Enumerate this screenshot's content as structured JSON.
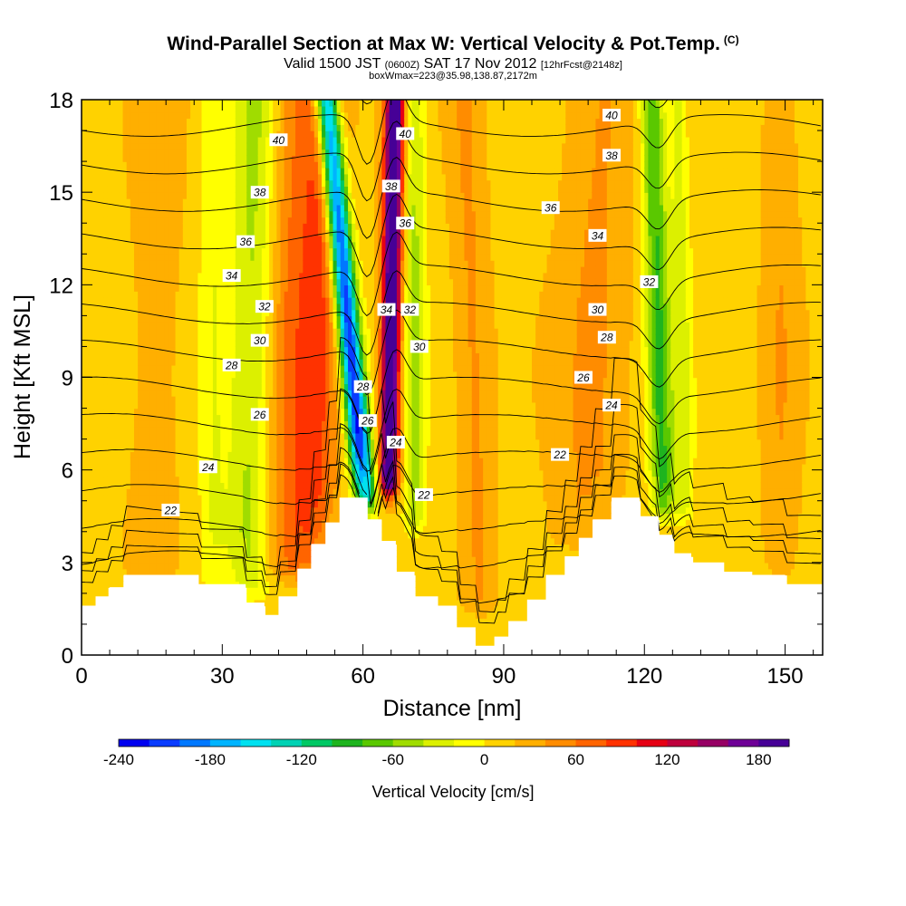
{
  "title": {
    "main": "Wind-Parallel Section at Max W: Vertical Velocity & Pot.Temp.",
    "copyright": "(C)",
    "valid_a": "Valid 1500 JST",
    "valid_utc": "(0600Z)",
    "valid_b": "SAT 17 Nov 2012",
    "fcst": "[12hrFcst@2148z]",
    "boxwmax": "boxWmax=223@35.98,138.87,2172m"
  },
  "chart_data": {
    "type": "heatmap",
    "xlabel": "Distance [nm]",
    "ylabel": "Height [Kft MSL]",
    "xlim": [
      0,
      158
    ],
    "ylim": [
      0,
      18
    ],
    "x_ticks": [
      0,
      30,
      60,
      90,
      120,
      150
    ],
    "y_ticks": [
      0,
      3,
      6,
      9,
      12,
      15,
      18
    ],
    "colorbar": {
      "label": "Vertical Velocity [cm/s]",
      "min": -240,
      "max": 200,
      "step": 20,
      "ticks": [
        -240,
        -180,
        -120,
        -60,
        0,
        60,
        120,
        180
      ],
      "colors": [
        "#0000f0",
        "#0a3cff",
        "#0078ff",
        "#00b4ff",
        "#00e1f0",
        "#00d2b4",
        "#00c864",
        "#1eb41e",
        "#5ac800",
        "#a0dc00",
        "#dcf000",
        "#ffff00",
        "#ffd200",
        "#ffaf00",
        "#ff8c00",
        "#ff6400",
        "#ff3200",
        "#e60014",
        "#be003c",
        "#960064",
        "#6e0096",
        "#460096"
      ]
    },
    "terrain_kft": [
      [
        0,
        1.6
      ],
      [
        3,
        1.6
      ],
      [
        3,
        1.9
      ],
      [
        6,
        1.9
      ],
      [
        6,
        2.2
      ],
      [
        9,
        2.2
      ],
      [
        9,
        2.6
      ],
      [
        25,
        2.6
      ],
      [
        25,
        2.3
      ],
      [
        35,
        2.3
      ],
      [
        35,
        1.7
      ],
      [
        39,
        1.7
      ],
      [
        39,
        1.3
      ],
      [
        42,
        1.3
      ],
      [
        42,
        1.9
      ],
      [
        46,
        1.9
      ],
      [
        46,
        2.8
      ],
      [
        49,
        2.8
      ],
      [
        49,
        3.6
      ],
      [
        52,
        3.6
      ],
      [
        52,
        4.3
      ],
      [
        55,
        4.3
      ],
      [
        55,
        5.1
      ],
      [
        61,
        5.1
      ],
      [
        61,
        4.4
      ],
      [
        64,
        4.4
      ],
      [
        64,
        3.7
      ],
      [
        67,
        3.7
      ],
      [
        67,
        2.7
      ],
      [
        71,
        2.7
      ],
      [
        71,
        1.9
      ],
      [
        76,
        1.9
      ],
      [
        76,
        1.6
      ],
      [
        80,
        1.6
      ],
      [
        80,
        0.9
      ],
      [
        84,
        0.9
      ],
      [
        84,
        0.3
      ],
      [
        88,
        0.3
      ],
      [
        88,
        0.6
      ],
      [
        91,
        0.6
      ],
      [
        91,
        1.1
      ],
      [
        95,
        1.1
      ],
      [
        95,
        1.8
      ],
      [
        99,
        1.8
      ],
      [
        99,
        2.6
      ],
      [
        103,
        2.6
      ],
      [
        103,
        3.2
      ],
      [
        106,
        3.2
      ],
      [
        106,
        3.8
      ],
      [
        109,
        3.8
      ],
      [
        109,
        4.4
      ],
      [
        113,
        4.4
      ],
      [
        113,
        5.1
      ],
      [
        119,
        5.1
      ],
      [
        119,
        4.5
      ],
      [
        123,
        4.5
      ],
      [
        123,
        3.9
      ],
      [
        126,
        3.9
      ],
      [
        126,
        3.3
      ],
      [
        130,
        3.3
      ],
      [
        130,
        3.0
      ],
      [
        137,
        3.0
      ],
      [
        137,
        2.7
      ],
      [
        143,
        2.7
      ],
      [
        143,
        2.6
      ],
      [
        150,
        2.6
      ],
      [
        150,
        2.3
      ],
      [
        158,
        2.3
      ]
    ],
    "w_features": [
      {
        "x": 60.2,
        "half_width": 2.4,
        "w_cms": -235,
        "z_bottom": 5.3,
        "slope": -0.62
      },
      {
        "x": 65.5,
        "half_width": 2.0,
        "w_cms": 215,
        "z_bottom": 5.8,
        "slope": 0.1
      },
      {
        "x": 71.0,
        "half_width": 2.2,
        "w_cms": -55,
        "z_bottom": 4.6,
        "slope": 0.0
      },
      {
        "x": 124.0,
        "half_width": 2.6,
        "w_cms": -95,
        "z_bottom": 5.0,
        "slope": -0.18
      },
      {
        "x": 128.5,
        "half_width": 2.0,
        "w_cms": -40,
        "z_bottom": 5.0,
        "slope": -0.1
      },
      {
        "x": 35.0,
        "half_width": 4.5,
        "w_cms": -55,
        "z_bottom": 2.5,
        "slope": 0.12
      },
      {
        "x": 28.0,
        "half_width": 3.0,
        "w_cms": -30,
        "z_bottom": 2.5,
        "slope": 0.0
      },
      {
        "x": 49.0,
        "half_width": 5.0,
        "w_cms": 75,
        "z_bottom": 3.0,
        "slope": 0.15
      },
      {
        "x": 43.0,
        "half_width": 4.0,
        "w_cms": 35,
        "z_bottom": 3.0,
        "slope": 0.1
      },
      {
        "x": 85.0,
        "half_width": 4.0,
        "w_cms": 30,
        "z_bottom": 2.0,
        "slope": -0.2
      },
      {
        "x": 108.0,
        "half_width": 8.0,
        "w_cms": 30,
        "z_bottom": 4.0,
        "slope": 0.2
      },
      {
        "x": 15.0,
        "half_width": 6.0,
        "w_cms": 20,
        "z_bottom": 3.0,
        "slope": 0.1
      },
      {
        "x": 149.0,
        "half_width": 4.0,
        "w_cms": 25,
        "z_bottom": 3.0,
        "slope": 0.0
      }
    ],
    "theta_levels": [
      20,
      22,
      24,
      26,
      28,
      30,
      32,
      34,
      36,
      38,
      40
    ],
    "theta_labels": [
      {
        "text": "22",
        "x": 19,
        "y": 4.7
      },
      {
        "text": "24",
        "x": 27,
        "y": 6.1
      },
      {
        "text": "26",
        "x": 38,
        "y": 7.8
      },
      {
        "text": "28",
        "x": 32,
        "y": 9.4
      },
      {
        "text": "30",
        "x": 38,
        "y": 10.2
      },
      {
        "text": "32",
        "x": 39,
        "y": 11.3
      },
      {
        "text": "34",
        "x": 32,
        "y": 12.3
      },
      {
        "text": "36",
        "x": 35,
        "y": 13.4
      },
      {
        "text": "38",
        "x": 38,
        "y": 15.0
      },
      {
        "text": "40",
        "x": 42,
        "y": 16.7
      },
      {
        "text": "28",
        "x": 60,
        "y": 8.7
      },
      {
        "text": "26",
        "x": 61,
        "y": 7.6
      },
      {
        "text": "24",
        "x": 67,
        "y": 6.9
      },
      {
        "text": "34",
        "x": 65,
        "y": 11.2
      },
      {
        "text": "38",
        "x": 66,
        "y": 15.2
      },
      {
        "text": "40",
        "x": 69,
        "y": 16.9
      },
      {
        "text": "36",
        "x": 69,
        "y": 14.0
      },
      {
        "text": "32",
        "x": 70,
        "y": 11.2
      },
      {
        "text": "30",
        "x": 72,
        "y": 10.0
      },
      {
        "text": "22",
        "x": 73,
        "y": 5.2
      },
      {
        "text": "22",
        "x": 102,
        "y": 6.5
      },
      {
        "text": "24",
        "x": 113,
        "y": 8.1
      },
      {
        "text": "26",
        "x": 107,
        "y": 9.0
      },
      {
        "text": "28",
        "x": 112,
        "y": 10.3
      },
      {
        "text": "30",
        "x": 110,
        "y": 11.2
      },
      {
        "text": "32",
        "x": 121,
        "y": 12.1
      },
      {
        "text": "34",
        "x": 110,
        "y": 13.6
      },
      {
        "text": "36",
        "x": 100,
        "y": 14.5
      },
      {
        "text": "38",
        "x": 113,
        "y": 16.2
      },
      {
        "text": "40",
        "x": 113,
        "y": 17.5
      }
    ]
  }
}
